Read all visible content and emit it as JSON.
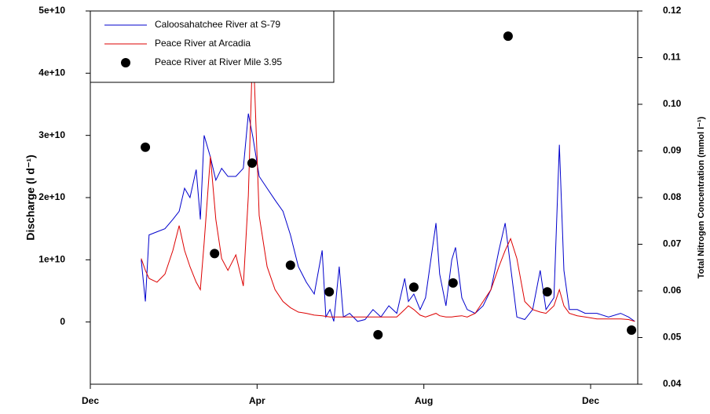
{
  "chart_data": {
    "type": "line",
    "y_label": "Discharge (l d⁻¹)",
    "y2_label": "Total Nitrogen Concentration (mmol l⁻¹)",
    "xlim": [
      0,
      13.13
    ],
    "xticks": [
      {
        "value": 0,
        "label": "Dec"
      },
      {
        "value": 4,
        "label": "Apr"
      },
      {
        "value": 8,
        "label": "Aug"
      },
      {
        "value": 12,
        "label": "Dec"
      }
    ],
    "ylim": [
      -10000000000.0,
      50000000000.0
    ],
    "yticks": [
      0,
      {
        "value": 10000000000.0,
        "label": "1e+10"
      },
      {
        "value": 20000000000.0,
        "label": "2e+10"
      },
      {
        "value": 30000000000.0,
        "label": "3e+10"
      },
      {
        "value": 40000000000.0,
        "label": "4e+10"
      },
      {
        "value": 50000000000.0,
        "label": "5e+10"
      }
    ],
    "y2lim": [
      0.04,
      0.12
    ],
    "y2ticks": [
      0.04,
      0.05,
      0.06,
      0.07,
      0.08,
      0.09,
      {
        "value": 0.1,
        "label": "0.10"
      },
      0.11,
      0.12
    ],
    "legend": "upper left",
    "series": [
      {
        "name": "Caloosahatchee River at S-79",
        "color": "#0000cc",
        "type": "line",
        "x": [
          1.22,
          1.32,
          1.41,
          1.6,
          1.79,
          1.98,
          2.13,
          2.26,
          2.39,
          2.54,
          2.64,
          2.73,
          2.88,
          3.01,
          3.15,
          3.3,
          3.49,
          3.67,
          3.79,
          3.9,
          4.05,
          4.24,
          4.43,
          4.62,
          4.8,
          4.99,
          5.18,
          5.37,
          5.56,
          5.65,
          5.75,
          5.84,
          5.97,
          6.07,
          6.22,
          6.41,
          6.59,
          6.78,
          6.97,
          7.16,
          7.35,
          7.54,
          7.63,
          7.76,
          7.91,
          8.04,
          8.29,
          8.38,
          8.53,
          8.67,
          8.76,
          8.91,
          9.04,
          9.23,
          9.42,
          9.61,
          9.8,
          9.95,
          10.08,
          10.23,
          10.42,
          10.61,
          10.79,
          10.93,
          11.12,
          11.25,
          11.36,
          11.49,
          11.68,
          11.87,
          12.15,
          12.43,
          12.72,
          12.91,
          13.06
        ],
        "values": [
          10000000000.0,
          3300000000.0,
          14000000000.0,
          14500000000.0,
          15000000000.0,
          16500000000.0,
          17800000000.0,
          21500000000.0,
          20000000000.0,
          24500000000.0,
          16500000000.0,
          30000000000.0,
          26500000000.0,
          22800000000.0,
          24700000000.0,
          23400000000.0,
          23400000000.0,
          24700000000.0,
          33500000000.0,
          29700000000.0,
          23400000000.0,
          21500000000.0,
          19600000000.0,
          17800000000.0,
          14000000000.0,
          8900000000.0,
          6400000000.0,
          4500000000.0,
          11500000000.0,
          800000000.0,
          2000000000.0,
          100000000.0,
          8900000000.0,
          800000000.0,
          1400000000.0,
          100000000.0,
          400000000.0,
          2000000000.0,
          800000000.0,
          2600000000.0,
          1400000000.0,
          7000000000.0,
          3300000000.0,
          4500000000.0,
          2000000000.0,
          3900000000.0,
          15900000000.0,
          7700000000.0,
          2600000000.0,
          10000000000.0,
          12000000000.0,
          3900000000.0,
          2000000000.0,
          1400000000.0,
          2600000000.0,
          5200000000.0,
          11500000000.0,
          15900000000.0,
          8900000000.0,
          800000000.0,
          400000000.0,
          2000000000.0,
          8300000000.0,
          2000000000.0,
          3900000000.0,
          28500000000.0,
          8300000000.0,
          2000000000.0,
          2000000000.0,
          1400000000.0,
          1400000000.0,
          800000000.0,
          1400000000.0,
          800000000.0,
          100000000.0
        ]
      },
      {
        "name": "Peace River at Arcadia",
        "color": "#dd0000",
        "type": "line",
        "x": [
          1.22,
          1.32,
          1.41,
          1.6,
          1.79,
          1.98,
          2.13,
          2.26,
          2.39,
          2.54,
          2.64,
          2.73,
          2.88,
          3.01,
          3.15,
          3.3,
          3.49,
          3.67,
          3.79,
          3.9,
          4.05,
          4.24,
          4.43,
          4.62,
          4.8,
          4.99,
          5.18,
          5.37,
          5.56,
          5.65,
          5.75,
          5.84,
          5.97,
          6.07,
          6.22,
          6.41,
          6.59,
          6.78,
          6.97,
          7.16,
          7.35,
          7.54,
          7.63,
          7.76,
          7.91,
          8.04,
          8.29,
          8.38,
          8.53,
          8.67,
          8.76,
          8.91,
          9.04,
          9.23,
          9.42,
          9.61,
          9.8,
          9.95,
          10.08,
          10.23,
          10.42,
          10.61,
          10.79,
          10.93,
          11.12,
          11.25,
          11.36,
          11.49,
          11.68,
          11.87,
          12.15,
          12.43,
          12.72,
          12.91,
          13.06
        ],
        "values": [
          10200000000.0,
          8300000000.0,
          7000000000.0,
          6400000000.0,
          7700000000.0,
          11500000000.0,
          15500000000.0,
          11500000000.0,
          8900000000.0,
          6400000000.0,
          5200000000.0,
          12700000000.0,
          26600000000.0,
          16500000000.0,
          10200000000.0,
          8300000000.0,
          10800000000.0,
          5800000000.0,
          20300000000.0,
          45500000000.0,
          17100000000.0,
          8900000000.0,
          5200000000.0,
          3300000000.0,
          2300000000.0,
          1600000000.0,
          1400000000.0,
          1100000000.0,
          1000000000.0,
          900000000.0,
          800000000.0,
          800000000.0,
          800000000.0,
          800000000.0,
          800000000.0,
          800000000.0,
          800000000.0,
          800000000.0,
          800000000.0,
          800000000.0,
          800000000.0,
          2000000000.0,
          2600000000.0,
          2000000000.0,
          1100000000.0,
          800000000.0,
          1400000000.0,
          1000000000.0,
          800000000.0,
          800000000.0,
          900000000.0,
          1000000000.0,
          800000000.0,
          1400000000.0,
          3300000000.0,
          5200000000.0,
          8900000000.0,
          11500000000.0,
          13400000000.0,
          10200000000.0,
          3300000000.0,
          2000000000.0,
          1600000000.0,
          1400000000.0,
          2600000000.0,
          5200000000.0,
          2600000000.0,
          1400000000.0,
          1000000000.0,
          800000000.0,
          500000000.0,
          500000000.0,
          500000000.0,
          400000000.0,
          100000000.0
        ]
      },
      {
        "name": "Peace River at River Mile 3.95",
        "color": "#000000",
        "type": "scatter",
        "axis": "y2",
        "x": [
          1.32,
          2.98,
          3.88,
          4.8,
          5.73,
          6.9,
          7.76,
          8.7,
          10.02,
          10.96,
          12.98
        ],
        "values": [
          0.0908,
          0.068,
          0.0874,
          0.0655,
          0.0598,
          0.0506,
          0.0608,
          0.0617,
          0.1146,
          0.0598,
          0.0516
        ]
      }
    ]
  }
}
